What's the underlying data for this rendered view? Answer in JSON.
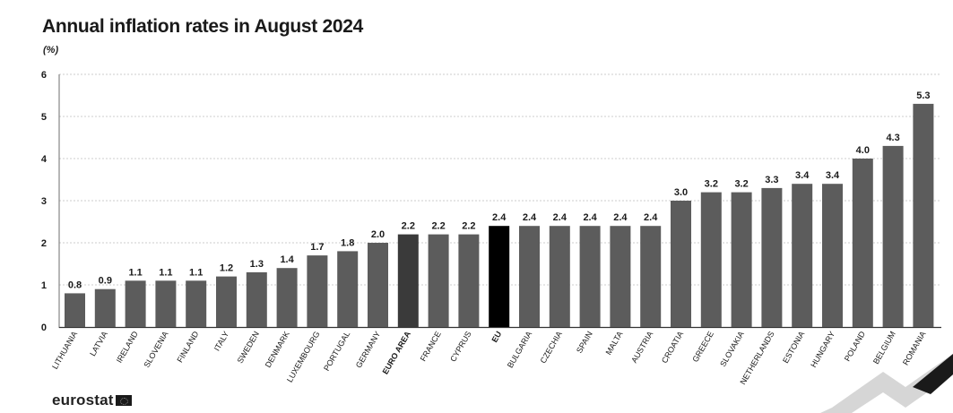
{
  "title": "Annual inflation rates in August 2024",
  "unit_label": "(%)",
  "logo_text": "eurostat",
  "colors": {
    "bar": "#5c5c5c",
    "euro_area_bar": "#3a3a3a",
    "eu_bar": "#000000",
    "grid": "#bdbdbd",
    "text": "#1a1a1a"
  },
  "chart_data": {
    "type": "bar",
    "title": "Annual inflation rates in August 2024",
    "ylabel": "(%)",
    "xlabel": "",
    "ylim": [
      0,
      6
    ],
    "yticks": [
      0,
      1,
      2,
      3,
      4,
      5,
      6
    ],
    "grid": true,
    "categories": [
      "LITHUANIA",
      "LATVIA",
      "IRELAND",
      "SLOVENIA",
      "FINLAND",
      "ITALY",
      "SWEDEN",
      "DENMARK",
      "LUXEMBOURG",
      "PORTUGAL",
      "GERMANY",
      "EURO AREA",
      "FRANCE",
      "CYPRUS",
      "EU",
      "BULGARIA",
      "CZECHIA",
      "SPAIN",
      "MALTA",
      "AUSTRIA",
      "CROATIA",
      "GREECE",
      "SLOVAKIA",
      "NETHERLANDS",
      "ESTONIA",
      "HUNGARY",
      "POLAND",
      "BELGIUM",
      "ROMANIA"
    ],
    "values": [
      0.8,
      0.9,
      1.1,
      1.1,
      1.1,
      1.2,
      1.3,
      1.4,
      1.7,
      1.8,
      2.0,
      2.2,
      2.2,
      2.2,
      2.4,
      2.4,
      2.4,
      2.4,
      2.4,
      2.4,
      3.0,
      3.2,
      3.2,
      3.3,
      3.4,
      3.4,
      4.0,
      4.3,
      5.3
    ],
    "value_labels": [
      "0.8",
      "0.9",
      "1.1",
      "1.1",
      "1.1",
      "1.2",
      "1.3",
      "1.4",
      "1.7",
      "1.8",
      "2.0",
      "2.2",
      "2.2",
      "2.2",
      "2.4",
      "2.4",
      "2.4",
      "2.4",
      "2.4",
      "2.4",
      "3.0",
      "3.2",
      "3.2",
      "3.3",
      "3.4",
      "3.4",
      "4.0",
      "4.3",
      "5.3"
    ],
    "highlighted": [
      "EURO AREA",
      "EU"
    ]
  }
}
